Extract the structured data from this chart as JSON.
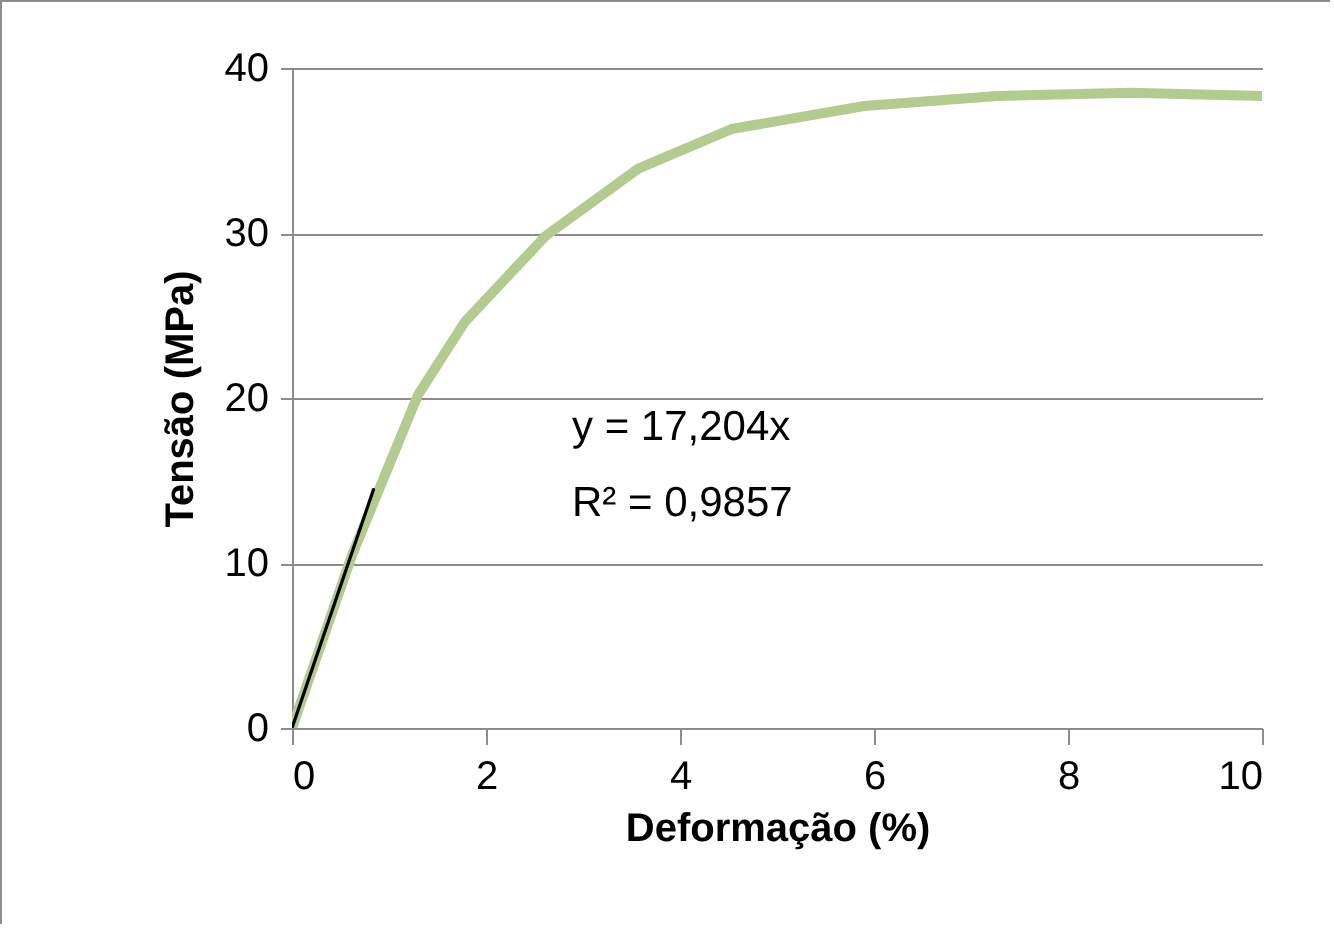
{
  "chart_data": {
    "type": "line",
    "xlabel": "Deformação (%)",
    "ylabel": "Tensão (MPa)",
    "xlim": [
      0,
      10
    ],
    "ylim": [
      0,
      40
    ],
    "xticks": [
      0,
      2,
      4,
      6,
      8,
      10
    ],
    "yticks": [
      0,
      10,
      20,
      30,
      40
    ],
    "grid": "y",
    "series": [
      {
        "color": "#b3cb8f",
        "x": [
          0,
          0.62,
          1.3,
          1.78,
          2.61,
          3.57,
          4.53,
          5.9,
          7.27,
          8.64,
          10
        ],
        "values": [
          0,
          10.5,
          20.2,
          24.6,
          29.8,
          33.9,
          36.3,
          37.7,
          38.3,
          38.5,
          38.3
        ]
      },
      {
        "type": "line",
        "color": "#000000",
        "x": [
          0,
          0.84
        ],
        "values": [
          0,
          14.45
        ]
      }
    ],
    "annotations": [
      "y = 17,204x",
      "R² = 0,9857"
    ]
  }
}
